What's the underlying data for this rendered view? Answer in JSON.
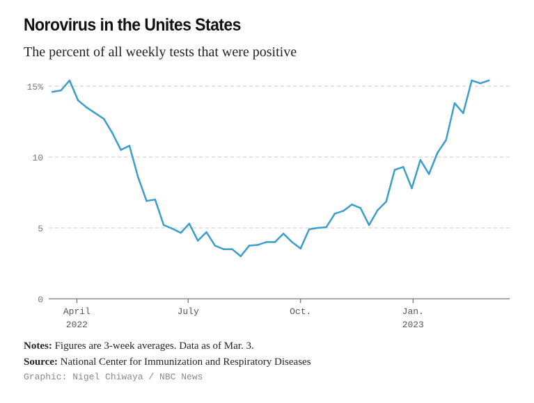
{
  "header": {
    "title": "Norovirus in the Unites States",
    "subtitle": "The percent of all weekly tests that were positive"
  },
  "footer": {
    "notes_label": "Notes:",
    "notes_text": "Figures are 3-week averages. Data as of Mar. 3.",
    "source_label": "Source:",
    "source_text": "National Center for Immunization and Respiratory Diseases",
    "credit": "Graphic: Nigel Chiwaya / NBC News"
  },
  "colors": {
    "line": "#3a9dcb",
    "grid": "#c8c8c8",
    "axis": "#555555",
    "tick_text": "#777777"
  },
  "chart_data": {
    "type": "line",
    "title": "Norovirus in the Unites States",
    "subtitle": "The percent of all weekly tests that were positive",
    "xlabel": "",
    "ylabel": "",
    "ylim": [
      0,
      15
    ],
    "xlim": [
      "2022-03-09",
      "2023-03-21"
    ],
    "grid": true,
    "y_ticks": [
      {
        "value": 0,
        "label": "0"
      },
      {
        "value": 5,
        "label": "5"
      },
      {
        "value": 10,
        "label": "10"
      },
      {
        "value": 15,
        "label": "15%"
      }
    ],
    "x_ticks": [
      {
        "value": "2022-04-01",
        "label": "April",
        "sublabel": "2022"
      },
      {
        "value": "2022-07-01",
        "label": "July",
        "sublabel": ""
      },
      {
        "value": "2022-10-01",
        "label": "Oct.",
        "sublabel": ""
      },
      {
        "value": "2023-01-01",
        "label": "Jan.",
        "sublabel": "2023"
      }
    ],
    "series": [
      {
        "color": "#3a9dcb",
        "x": [
          "2022-03-12",
          "2022-03-19",
          "2022-03-26",
          "2022-04-02",
          "2022-04-09",
          "2022-04-16",
          "2022-04-23",
          "2022-04-30",
          "2022-05-07",
          "2022-05-14",
          "2022-05-21",
          "2022-05-28",
          "2022-06-04",
          "2022-06-11",
          "2022-06-18",
          "2022-06-25",
          "2022-07-02",
          "2022-07-09",
          "2022-07-16",
          "2022-07-23",
          "2022-07-30",
          "2022-08-06",
          "2022-08-13",
          "2022-08-20",
          "2022-08-27",
          "2022-09-03",
          "2022-09-10",
          "2022-09-17",
          "2022-09-24",
          "2022-10-01",
          "2022-10-08",
          "2022-10-15",
          "2022-10-22",
          "2022-10-29",
          "2022-11-05",
          "2022-11-12",
          "2022-11-19",
          "2022-11-26",
          "2022-12-03",
          "2022-12-10",
          "2022-12-17",
          "2022-12-24",
          "2022-12-31",
          "2023-01-07",
          "2023-01-14",
          "2023-01-21",
          "2023-01-28",
          "2023-02-04",
          "2023-02-11",
          "2023-02-18",
          "2023-02-25",
          "2023-03-04"
        ],
        "y": [
          14.6,
          14.7,
          15.4,
          14.0,
          13.5,
          13.1,
          12.7,
          11.7,
          10.5,
          10.8,
          8.6,
          6.9,
          7.0,
          5.2,
          4.95,
          4.65,
          5.3,
          4.1,
          4.7,
          3.75,
          3.5,
          3.5,
          3.0,
          3.75,
          3.8,
          4.0,
          4.0,
          4.6,
          4.0,
          3.55,
          4.9,
          5.0,
          5.05,
          6.0,
          6.2,
          6.65,
          6.4,
          5.2,
          6.25,
          6.85,
          9.1,
          9.3,
          7.8,
          9.8,
          8.8,
          10.3,
          11.2,
          13.8,
          13.1,
          15.4,
          15.2,
          15.4
        ]
      }
    ]
  }
}
